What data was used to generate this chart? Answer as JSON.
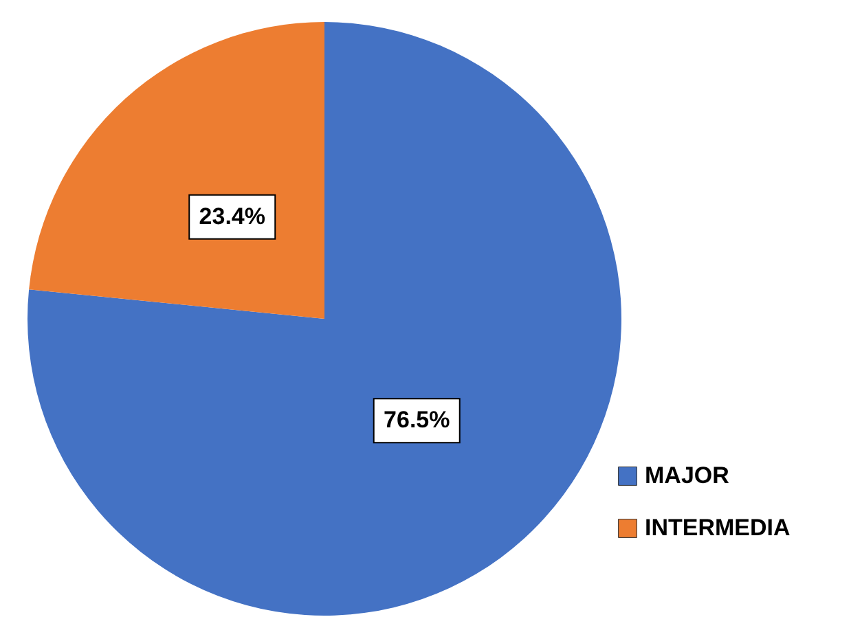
{
  "chart_data": {
    "type": "pie",
    "categories": [
      "MAJOR",
      "INTERMEDIA"
    ],
    "values": [
      76.5,
      23.4
    ],
    "colors": [
      "#4472c4",
      "#ed7d31"
    ],
    "value_labels": [
      "76.5%",
      "23.4%"
    ],
    "legend": "bottom right"
  }
}
